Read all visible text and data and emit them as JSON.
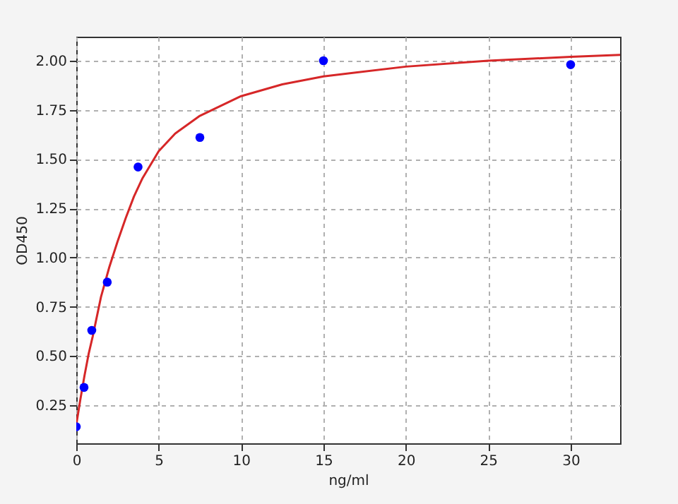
{
  "chart_data": {
    "type": "scatter",
    "xlabel": "ng/ml",
    "ylabel": "OD450",
    "xlim": [
      0,
      33
    ],
    "ylim": [
      0.056,
      2.122
    ],
    "xticks": [
      0,
      5,
      10,
      15,
      20,
      25,
      30
    ],
    "yticks": [
      {
        "value": 0.25,
        "label": "0.25"
      },
      {
        "value": 0.5,
        "label": "0.50"
      },
      {
        "value": 0.75,
        "label": "0.75"
      },
      {
        "value": 1,
        "label": "1.00"
      },
      {
        "value": 1.25,
        "label": "1.25"
      },
      {
        "value": 1.5,
        "label": "1.50"
      },
      {
        "value": 1.75,
        "label": "1.75"
      },
      {
        "value": 2,
        "label": "2.00"
      }
    ],
    "grid": true,
    "series": [
      {
        "type": "line",
        "color": "#d62728",
        "line_style": "solid",
        "marker": "none",
        "x": [
          0,
          0.25,
          0.5,
          0.75,
          1,
          1.5,
          2,
          2.5,
          3,
          3.5,
          4,
          5,
          6,
          7.5,
          10,
          12.5,
          15,
          20,
          25,
          30,
          33
        ],
        "values": [
          0.15,
          0.28,
          0.4,
          0.51,
          0.6,
          0.8,
          0.95,
          1.08,
          1.2,
          1.31,
          1.4,
          1.54,
          1.63,
          1.72,
          1.82,
          1.88,
          1.92,
          1.97,
          2.0,
          2.02,
          2.03
        ]
      },
      {
        "color": "#0000ff",
        "marker": "circle",
        "x": [
          0,
          0.47,
          0.94,
          1.88,
          3.75,
          7.5,
          15,
          30
        ],
        "values": [
          0.14,
          0.34,
          0.63,
          0.875,
          1.46,
          1.61,
          2.0,
          1.98
        ]
      }
    ]
  }
}
